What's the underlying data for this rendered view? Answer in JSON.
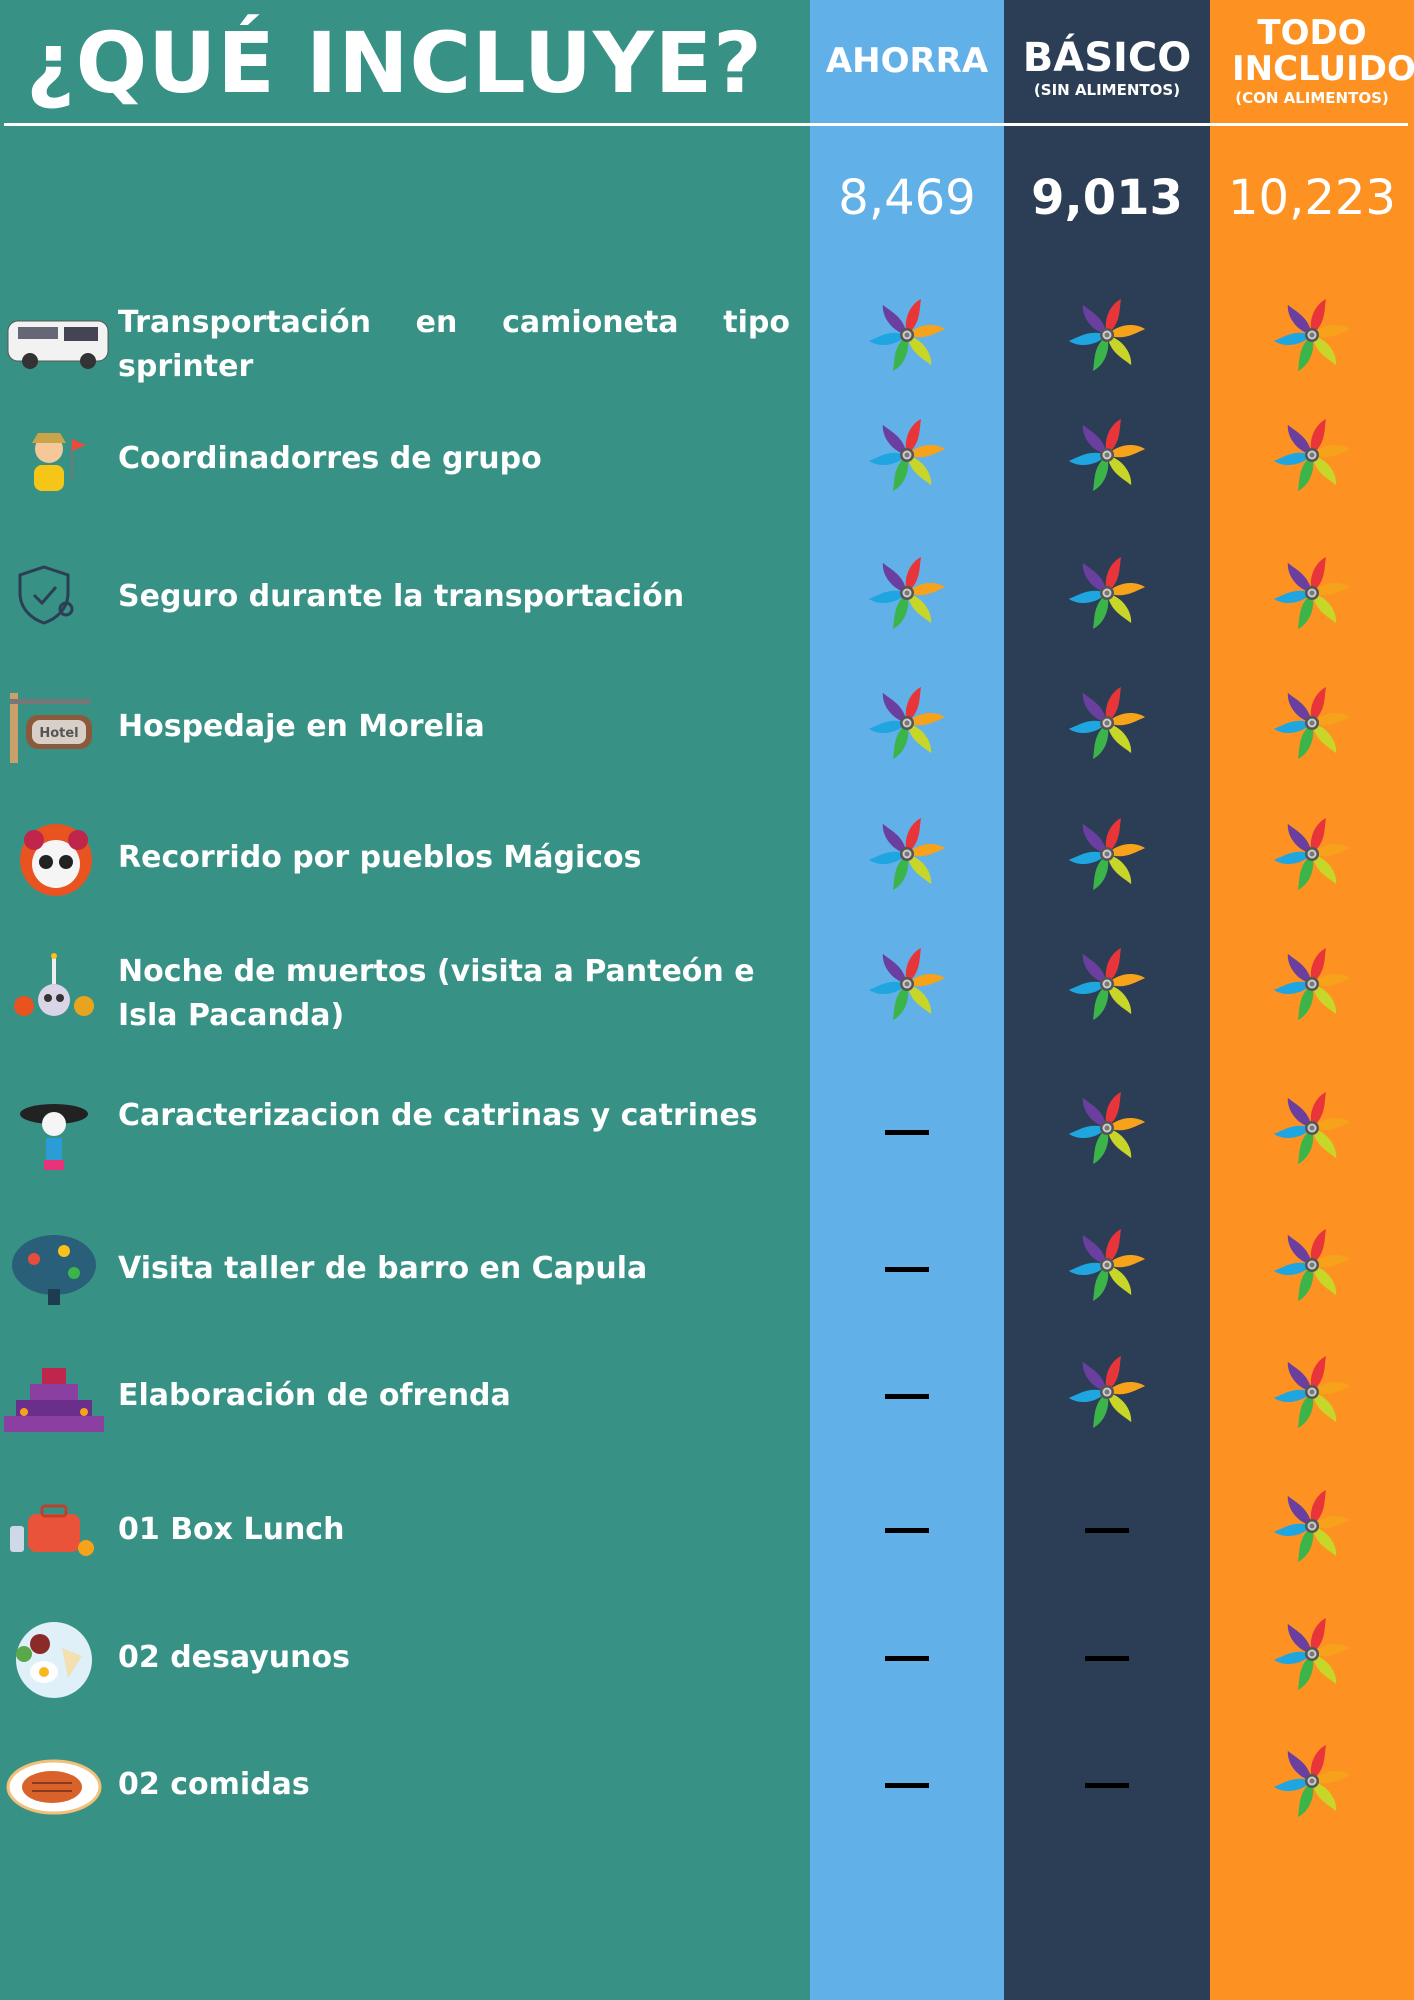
{
  "title": "¿QUÉ INCLUYE?",
  "plans": [
    {
      "name": "AHORRA",
      "subtitle": "",
      "price": "8,469",
      "color": "#62b0e8"
    },
    {
      "name": "BÁSICO",
      "subtitle": "(SIN ALIMENTOS)",
      "price": "9,013",
      "color": "#2c3e55"
    },
    {
      "name": "TODO INCLUIDO",
      "subtitle": "(CON ALIMENTOS)",
      "price": "10,223",
      "color": "#fd9222"
    }
  ],
  "colors": {
    "background": "#379185",
    "included_icon": "pinwheel-icon",
    "not_included_icon": "dash-icon"
  },
  "features": [
    {
      "label": "Transportación en camioneta tipo sprinter",
      "icon": "van-icon",
      "included": [
        true,
        true,
        true
      ]
    },
    {
      "label": "Coordinadorres de grupo",
      "icon": "guide-icon",
      "included": [
        true,
        true,
        true
      ]
    },
    {
      "label": "Seguro durante la transportación",
      "icon": "shield-icon",
      "included": [
        true,
        true,
        true
      ]
    },
    {
      "label": "Hospedaje en Morelia",
      "icon": "hotel-sign-icon",
      "included": [
        true,
        true,
        true
      ]
    },
    {
      "label": "Recorrido por pueblos Mágicos",
      "icon": "sugar-skull-icon",
      "included": [
        true,
        true,
        true
      ]
    },
    {
      "label": "Noche de muertos (visita a Panteón e Isla Pacanda)",
      "icon": "skull-candle-icon",
      "included": [
        true,
        true,
        true
      ]
    },
    {
      "label": "Caracterizacion de catrinas y catrines",
      "icon": "catrina-icon",
      "included": [
        false,
        true,
        true
      ]
    },
    {
      "label": "Visita taller de barro en Capula",
      "icon": "clay-tree-icon",
      "included": [
        false,
        true,
        true
      ]
    },
    {
      "label": "Elaboración de ofrenda",
      "icon": "ofrenda-icon",
      "included": [
        false,
        true,
        true
      ]
    },
    {
      "label": "01 Box Lunch",
      "icon": "lunchbox-icon",
      "included": [
        false,
        false,
        true
      ]
    },
    {
      "label": "02 desayunos",
      "icon": "breakfast-plate-icon",
      "included": [
        false,
        false,
        true
      ]
    },
    {
      "label": "02 comidas",
      "icon": "steak-plate-icon",
      "included": [
        false,
        false,
        true
      ]
    }
  ]
}
